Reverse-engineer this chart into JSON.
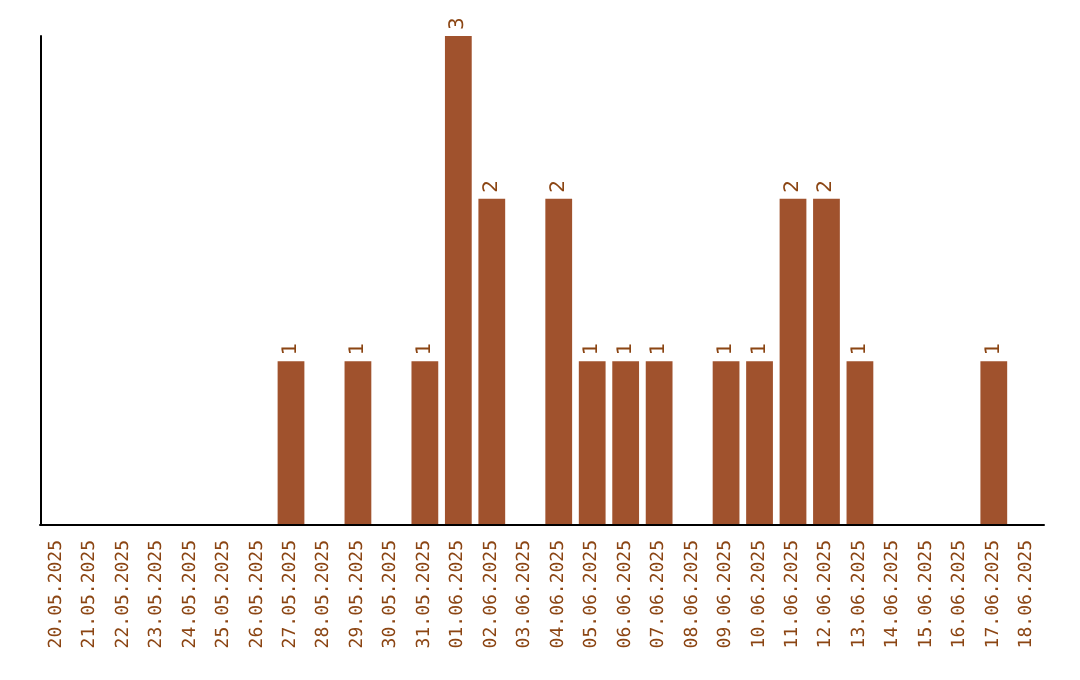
{
  "chart_data": {
    "type": "bar",
    "categories": [
      "20.05.2025",
      "21.05.2025",
      "22.05.2025",
      "23.05.2025",
      "24.05.2025",
      "25.05.2025",
      "26.05.2025",
      "27.05.2025",
      "28.05.2025",
      "29.05.2025",
      "30.05.2025",
      "31.05.2025",
      "01.06.2025",
      "02.06.2025",
      "03.06.2025",
      "04.06.2025",
      "05.06.2025",
      "06.06.2025",
      "07.06.2025",
      "08.06.2025",
      "09.06.2025",
      "10.06.2025",
      "11.06.2025",
      "12.06.2025",
      "13.06.2025",
      "14.06.2025",
      "15.06.2025",
      "16.06.2025",
      "17.06.2025",
      "18.06.2025"
    ],
    "values": [
      0,
      0,
      0,
      0,
      0,
      0,
      0,
      1,
      0,
      1,
      0,
      1,
      3,
      2,
      0,
      2,
      1,
      1,
      1,
      0,
      1,
      1,
      2,
      2,
      1,
      0,
      0,
      0,
      1,
      0
    ],
    "value_labels": [
      null,
      null,
      null,
      null,
      null,
      null,
      null,
      "1",
      null,
      "1",
      null,
      "1",
      "3",
      "2",
      null,
      "2",
      "1",
      "1",
      "1",
      null,
      "1",
      "1",
      "2",
      "2",
      "1",
      null,
      null,
      null,
      "1",
      null
    ],
    "color": "#a0522d",
    "grid": false
  }
}
